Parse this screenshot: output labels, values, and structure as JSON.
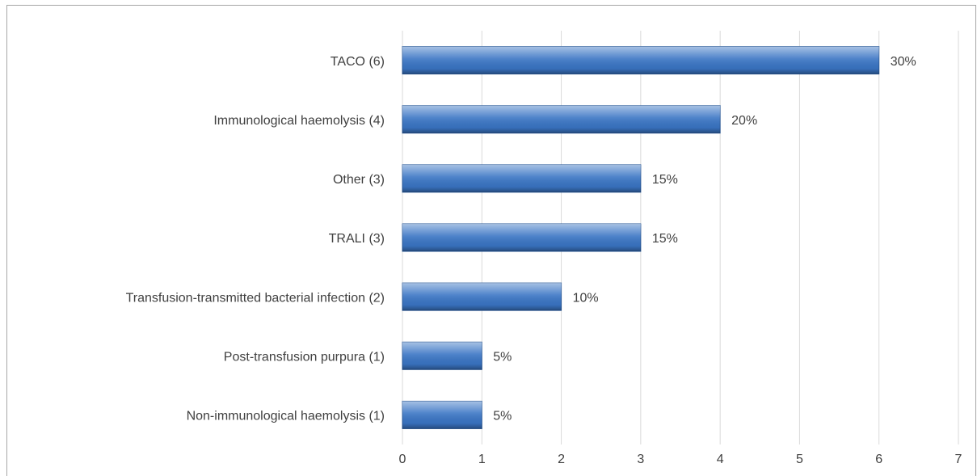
{
  "chart_data": {
    "type": "bar",
    "orientation": "horizontal",
    "categories": [
      "TACO (6)",
      "Immunological haemolysis (4)",
      "Other (3)",
      "TRALI (3)",
      "Transfusion-transmitted bacterial infection (2)",
      "Post-transfusion purpura (1)",
      "Non-immunological haemolysis (1)"
    ],
    "values": [
      6,
      4,
      3,
      3,
      2,
      1,
      1
    ],
    "value_labels": [
      "30%",
      "20%",
      "15%",
      "15%",
      "10%",
      "5%",
      "5%"
    ],
    "color": "#3a75c4",
    "xlim": [
      0,
      7
    ],
    "xticks": [
      0,
      1,
      2,
      3,
      4,
      5,
      6,
      7
    ],
    "grid": true
  }
}
